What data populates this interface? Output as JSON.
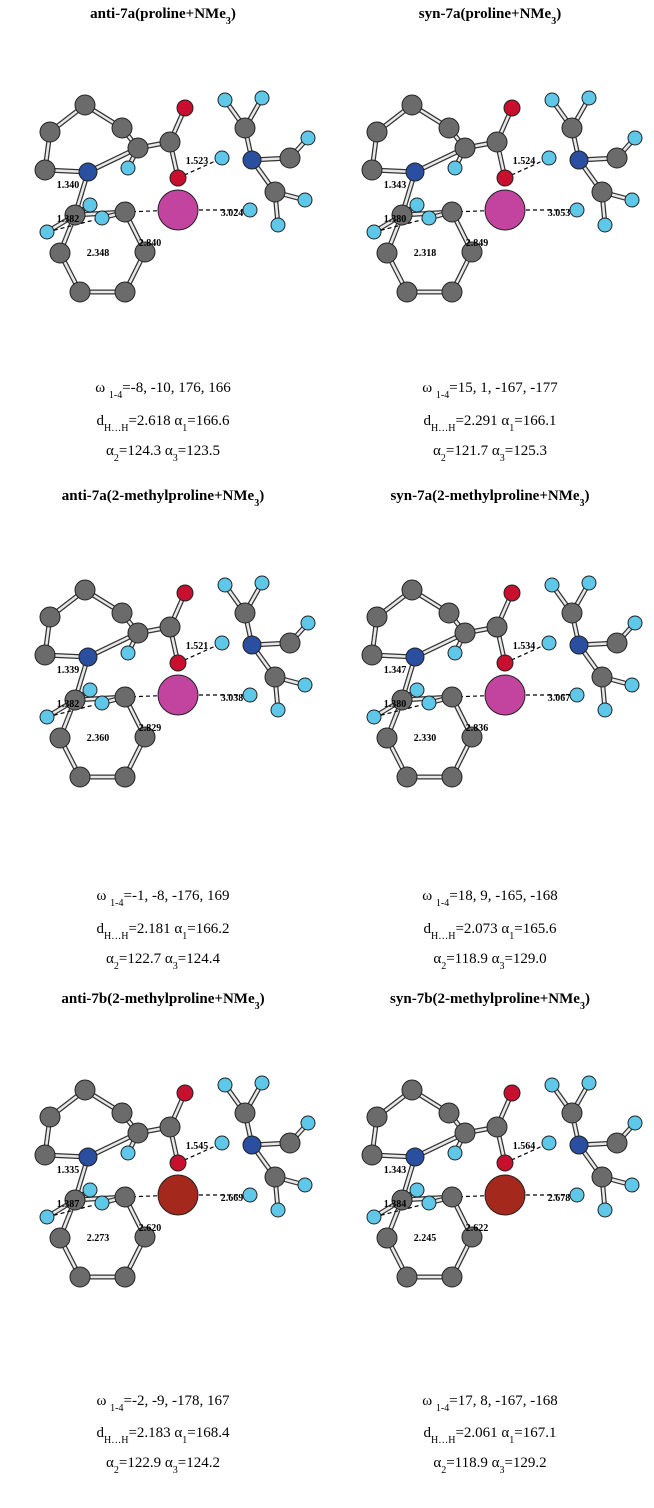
{
  "panels": [
    {
      "title": [
        {
          "text": "anti-7a(proline+NMe"
        },
        {
          "text": "3",
          "sub": true
        },
        {
          "text": ")"
        }
      ],
      "metal_color": "#c2449f",
      "distances": [
        "1.340",
        "1.382",
        "2.348",
        "2.840",
        "1.523",
        "3.024"
      ],
      "lines": [
        [
          {
            "text": "ω "
          },
          {
            "text": "1-4",
            "sub": true
          },
          {
            "text": "=-8, -10, 176, 166"
          }
        ],
        [
          {
            "text": "d"
          },
          {
            "text": "H…H",
            "sub": true
          },
          {
            "text": "=2.618 α"
          },
          {
            "text": "1",
            "sub": true
          },
          {
            "text": "=166.6"
          }
        ],
        [
          {
            "text": "α"
          },
          {
            "text": "2",
            "sub": true
          },
          {
            "text": "=124.3 α"
          },
          {
            "text": "3",
            "sub": true
          },
          {
            "text": "=123.5"
          }
        ]
      ]
    },
    {
      "title": [
        {
          "text": "syn-7a(proline+NMe"
        },
        {
          "text": "3",
          "sub": true
        },
        {
          "text": ")"
        }
      ],
      "metal_color": "#c2449f",
      "distances": [
        "1.343",
        "1.380",
        "2.318",
        "2.849",
        "1.524",
        "3.053"
      ],
      "lines": [
        [
          {
            "text": "ω "
          },
          {
            "text": "1-4",
            "sub": true
          },
          {
            "text": "=15, 1, -167, -177"
          }
        ],
        [
          {
            "text": "d"
          },
          {
            "text": "H…H",
            "sub": true
          },
          {
            "text": "=2.291 α"
          },
          {
            "text": "1",
            "sub": true
          },
          {
            "text": "=166.1"
          }
        ],
        [
          {
            "text": "α"
          },
          {
            "text": "2",
            "sub": true
          },
          {
            "text": "=121.7 α"
          },
          {
            "text": "3",
            "sub": true
          },
          {
            "text": "=125.3"
          }
        ]
      ]
    },
    {
      "title": [
        {
          "text": "anti-7a(2-methylproline+NMe"
        },
        {
          "text": "3",
          "sub": true
        },
        {
          "text": ")"
        }
      ],
      "metal_color": "#c2449f",
      "distances": [
        "1.339",
        "1.382",
        "2.360",
        "2.829",
        "1.521",
        "3.038"
      ],
      "lines": [
        [
          {
            "text": "ω "
          },
          {
            "text": "1-4",
            "sub": true
          },
          {
            "text": "=-1, -8, -176, 169"
          }
        ],
        [
          {
            "text": "d"
          },
          {
            "text": "H…H",
            "sub": true
          },
          {
            "text": "=2.181 α"
          },
          {
            "text": "1",
            "sub": true
          },
          {
            "text": "=166.2"
          }
        ],
        [
          {
            "text": "α"
          },
          {
            "text": "2",
            "sub": true
          },
          {
            "text": "=122.7 α"
          },
          {
            "text": "3",
            "sub": true
          },
          {
            "text": "=124.4"
          }
        ]
      ]
    },
    {
      "title": [
        {
          "text": "syn-7a(2-methylproline+NMe"
        },
        {
          "text": "3",
          "sub": true
        },
        {
          "text": ")"
        }
      ],
      "metal_color": "#c2449f",
      "distances": [
        "1.347",
        "1.380",
        "2.330",
        "2.836",
        "1.534",
        "3.067"
      ],
      "lines": [
        [
          {
            "text": "ω "
          },
          {
            "text": "1-4",
            "sub": true
          },
          {
            "text": "=18, 9, -165, -168"
          }
        ],
        [
          {
            "text": "d"
          },
          {
            "text": "H…H",
            "sub": true
          },
          {
            "text": "=2.073 α"
          },
          {
            "text": "1",
            "sub": true
          },
          {
            "text": "=165.6"
          }
        ],
        [
          {
            "text": "α"
          },
          {
            "text": "2",
            "sub": true
          },
          {
            "text": "=118.9 α"
          },
          {
            "text": "3",
            "sub": true
          },
          {
            "text": "=129.0"
          }
        ]
      ]
    },
    {
      "title": [
        {
          "text": "anti-7b(2-methylproline+NMe"
        },
        {
          "text": "3",
          "sub": true
        },
        {
          "text": ")"
        }
      ],
      "metal_color": "#a5281c",
      "distances": [
        "1.335",
        "1.387",
        "2.273",
        "2.620",
        "1.545",
        "2.669"
      ],
      "lines": [
        [
          {
            "text": "ω "
          },
          {
            "text": "1-4",
            "sub": true
          },
          {
            "text": "=-2, -9, -178, 167"
          }
        ],
        [
          {
            "text": "d"
          },
          {
            "text": "H…H",
            "sub": true
          },
          {
            "text": "=2.183 α"
          },
          {
            "text": "1",
            "sub": true
          },
          {
            "text": "=168.4"
          }
        ],
        [
          {
            "text": "α"
          },
          {
            "text": "2",
            "sub": true
          },
          {
            "text": "=122.9 α"
          },
          {
            "text": "3",
            "sub": true
          },
          {
            "text": "=124.2"
          }
        ]
      ]
    },
    {
      "title": [
        {
          "text": "syn-7b(2-methylproline+NMe"
        },
        {
          "text": "3",
          "sub": true
        },
        {
          "text": ")"
        }
      ],
      "metal_color": "#a5281c",
      "distances": [
        "1.343",
        "1.384",
        "2.245",
        "2.622",
        "1.564",
        "2.678"
      ],
      "lines": [
        [
          {
            "text": "ω "
          },
          {
            "text": "1-4",
            "sub": true
          },
          {
            "text": "=17, 8, -167, -168"
          }
        ],
        [
          {
            "text": "d"
          },
          {
            "text": "H…H",
            "sub": true
          },
          {
            "text": "=2.061 α"
          },
          {
            "text": "1",
            "sub": true
          },
          {
            "text": "=167.1"
          }
        ],
        [
          {
            "text": "α"
          },
          {
            "text": "2",
            "sub": true
          },
          {
            "text": "=118.9 α"
          },
          {
            "text": "3",
            "sub": true
          },
          {
            "text": "=129.2"
          }
        ]
      ]
    }
  ]
}
